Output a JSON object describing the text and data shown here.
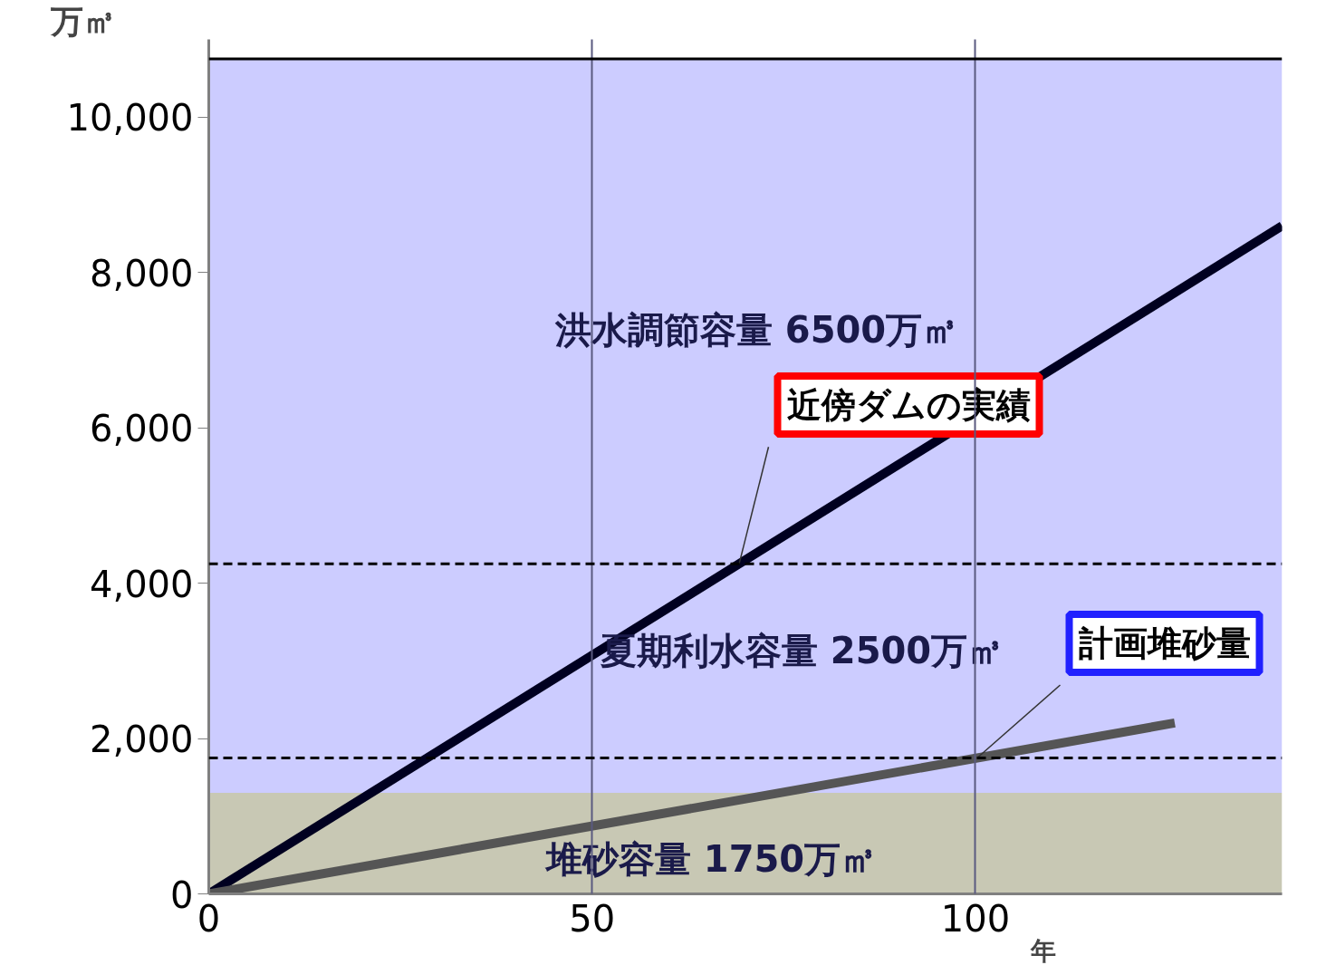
{
  "chart_data": {
    "type": "line",
    "xlabel": "年",
    "ylabel": "万㎥",
    "xlim": [
      0,
      140
    ],
    "ylim": [
      0,
      11000
    ],
    "xticks": [
      0,
      50,
      100
    ],
    "yticks": [
      0,
      {
        "value": 2000,
        "label": "2,000"
      },
      {
        "value": 4000,
        "label": "4,000"
      },
      {
        "value": 6000,
        "label": "6,000"
      },
      {
        "value": 8000,
        "label": "8,000"
      },
      {
        "value": 10000,
        "label": "10,000"
      }
    ],
    "grid": "x",
    "series": [
      {
        "name": "近傍ダムの実績",
        "color": "#000020",
        "x": [
          0,
          140
        ],
        "values": [
          0,
          8600
        ]
      },
      {
        "name": "計画堆砂量",
        "color": "#555555",
        "x": [
          0,
          126
        ],
        "values": [
          0,
          2200
        ]
      }
    ],
    "bands": [
      {
        "axis": "y",
        "from": 1300,
        "to": 10750,
        "color": "#ccccff"
      },
      {
        "axis": "y",
        "from": 0,
        "to": 1300,
        "color": "#c8c8b4"
      }
    ],
    "ref_lines": [
      {
        "axis": "y",
        "value": 10750,
        "line_style": "solid"
      },
      {
        "axis": "y",
        "value": 4250,
        "line_style": "dashed"
      },
      {
        "axis": "y",
        "value": 1750,
        "line_style": "dashed"
      }
    ],
    "annotations": [
      "洪水調節容量 6500万㎥",
      "夏期利水容量 2500万㎥",
      "堆砂容量 1750万㎥"
    ]
  }
}
